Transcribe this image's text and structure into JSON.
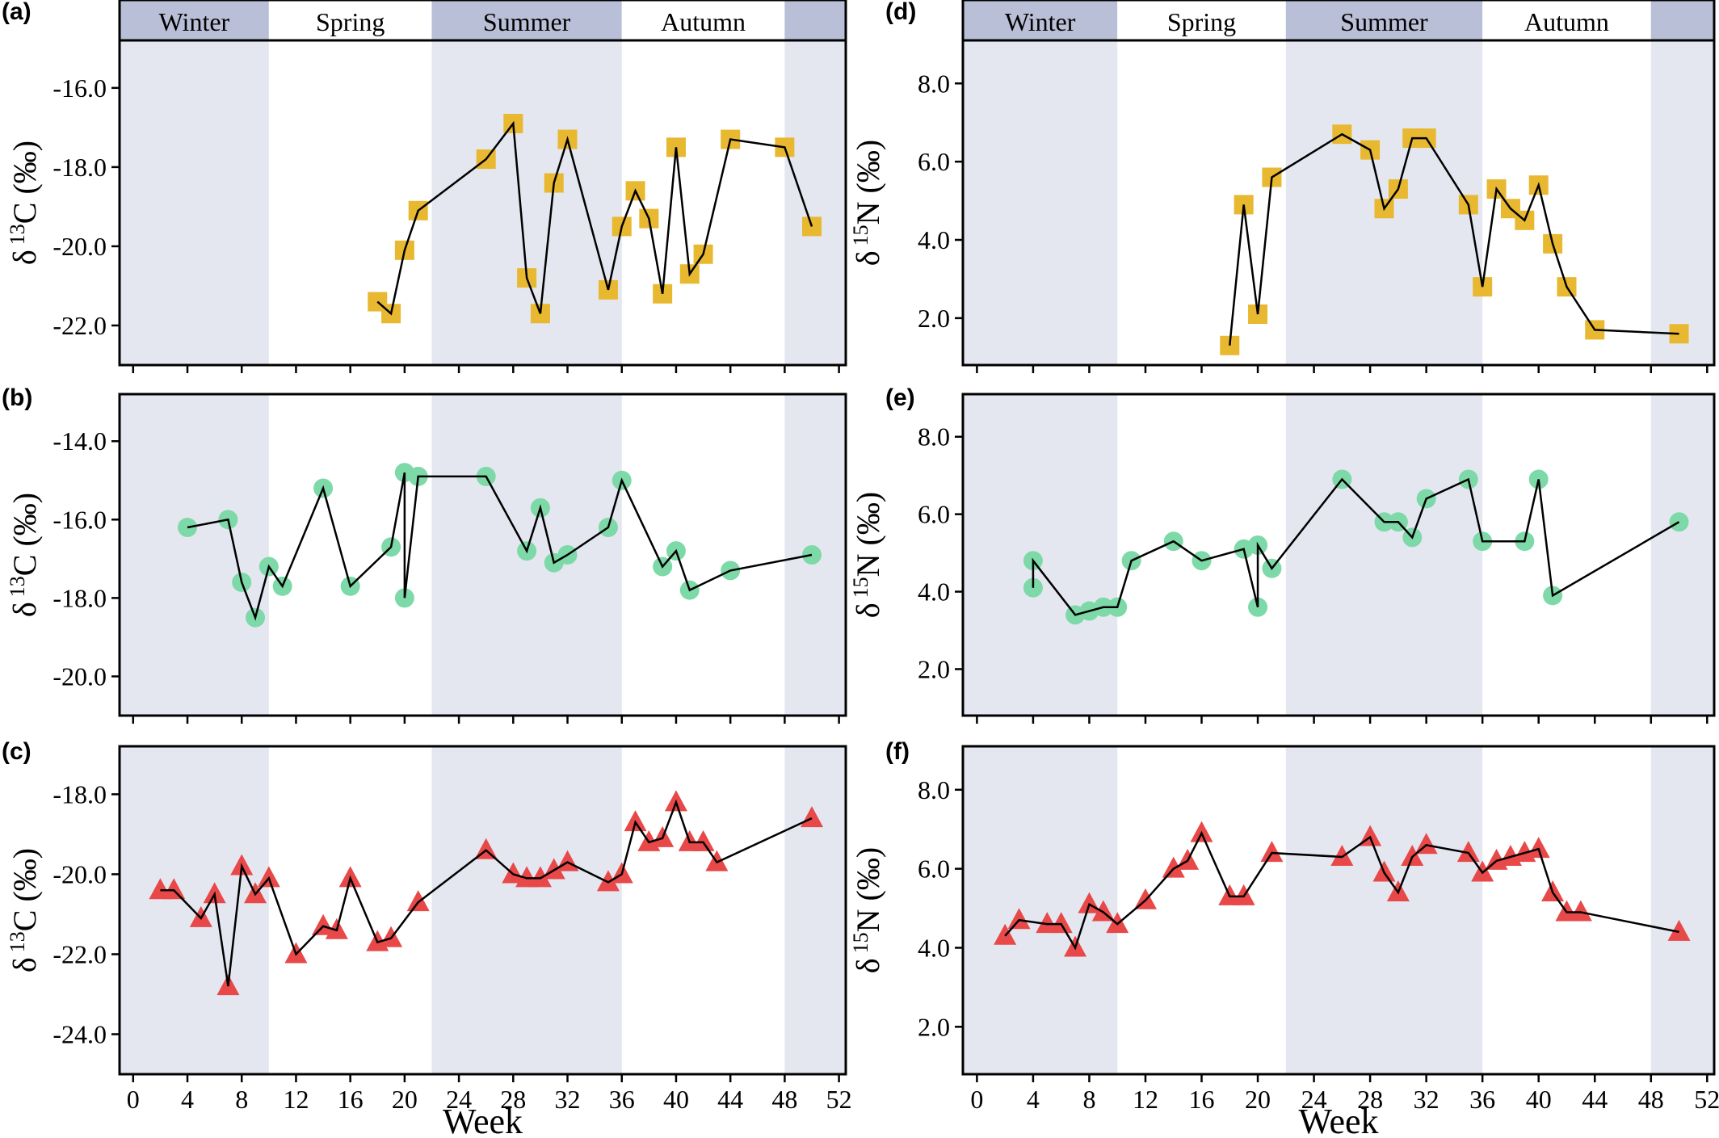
{
  "figure": {
    "xlabel": "Week",
    "x_ticks": [
      0,
      4,
      8,
      12,
      16,
      20,
      24,
      28,
      32,
      36,
      40,
      44,
      48,
      52
    ],
    "xlim": [
      -1,
      52.5
    ],
    "season_bands": [
      {
        "name": "Winter",
        "start": -1,
        "end": 10,
        "shaded": true
      },
      {
        "name": "Spring",
        "start": 10,
        "end": 22,
        "shaded": false
      },
      {
        "name": "Summer",
        "start": 22,
        "end": 36,
        "shaded": true
      },
      {
        "name": "Autumn",
        "start": 36,
        "end": 48,
        "shaded": false
      },
      {
        "name": "",
        "start": 48,
        "end": 52.5,
        "shaded": true
      }
    ],
    "colors": {
      "band_shade": "#e4e7f0",
      "header_shade": "#b8bfd6",
      "square": "#e8b830",
      "circle": "#7ed9a8",
      "triangle": "#e84848",
      "line": "#000000"
    }
  },
  "chart_data": [
    {
      "panel": "(a)",
      "type": "line",
      "marker": "square",
      "ylabel_main": "δ",
      "ylabel_sup": "13",
      "ylabel_rest": "C (‰)",
      "ylim": [
        -23.0,
        -14.8
      ],
      "y_ticks": [
        -16.0,
        -18.0,
        -20.0,
        -22.0
      ],
      "y_tick_labels": [
        "-16.0",
        "-18.0",
        "-20.0",
        "-22.0"
      ],
      "x": [
        18,
        19,
        20,
        21,
        26,
        28,
        29,
        30,
        31,
        32,
        35,
        36,
        37,
        38,
        39,
        40,
        41,
        42,
        44,
        48,
        50
      ],
      "y": [
        -21.4,
        -21.7,
        -20.1,
        -19.1,
        -17.8,
        -16.9,
        -20.8,
        -21.7,
        -18.4,
        -17.3,
        -21.1,
        -19.5,
        -18.6,
        -19.3,
        -21.2,
        -17.5,
        -20.7,
        -20.2,
        -17.3,
        -17.5,
        -19.5
      ]
    },
    {
      "panel": "(b)",
      "type": "line",
      "marker": "circle",
      "ylabel_main": "δ",
      "ylabel_sup": "13",
      "ylabel_rest": "C (‰)",
      "ylim": [
        -21.0,
        -12.8
      ],
      "y_ticks": [
        -14.0,
        -16.0,
        -18.0,
        -20.0
      ],
      "y_tick_labels": [
        "-14.0",
        "-16.0",
        "-18.0",
        "-20.0"
      ],
      "x": [
        4,
        7,
        8,
        9,
        10,
        11,
        14,
        16,
        19,
        20,
        20,
        21,
        26,
        29,
        30,
        31,
        32,
        35,
        36,
        39,
        40,
        41,
        44,
        50
      ],
      "y": [
        -16.2,
        -16.0,
        -17.6,
        -18.5,
        -17.2,
        -17.7,
        -15.2,
        -17.7,
        -16.7,
        -14.8,
        -18.0,
        -14.9,
        -14.9,
        -16.8,
        -15.7,
        -17.1,
        -16.9,
        -16.2,
        -15.0,
        -17.2,
        -16.8,
        -17.8,
        -17.3,
        -16.9
      ]
    },
    {
      "panel": "(c)",
      "type": "line",
      "marker": "triangle",
      "ylabel_main": "δ",
      "ylabel_sup": "13",
      "ylabel_rest": "C (‰)",
      "ylim": [
        -25.0,
        -16.8
      ],
      "y_ticks": [
        -18.0,
        -20.0,
        -22.0,
        -24.0
      ],
      "y_tick_labels": [
        "-18.0",
        "-20.0",
        "-22.0",
        "-24.0"
      ],
      "x": [
        2,
        3,
        5,
        6,
        7,
        8,
        9,
        10,
        12,
        14,
        15,
        16,
        18,
        19,
        21,
        26,
        28,
        29,
        30,
        31,
        32,
        35,
        36,
        37,
        38,
        39,
        40,
        41,
        42,
        43,
        50
      ],
      "y": [
        -20.4,
        -20.4,
        -21.1,
        -20.5,
        -22.8,
        -19.8,
        -20.5,
        -20.1,
        -22.0,
        -21.3,
        -21.4,
        -20.1,
        -21.7,
        -21.6,
        -20.7,
        -19.4,
        -20.0,
        -20.1,
        -20.1,
        -19.9,
        -19.7,
        -20.2,
        -20.0,
        -18.7,
        -19.2,
        -19.1,
        -18.2,
        -19.2,
        -19.2,
        -19.7,
        -18.6
      ]
    },
    {
      "panel": "(d)",
      "type": "line",
      "marker": "square",
      "ylabel_main": "δ",
      "ylabel_sup": "15",
      "ylabel_rest": "N (‰)",
      "ylim": [
        0.8,
        9.1
      ],
      "y_ticks": [
        2.0,
        4.0,
        6.0,
        8.0
      ],
      "y_tick_labels": [
        "2.0",
        "4.0",
        "6.0",
        "8.0"
      ],
      "x": [
        18,
        19,
        20,
        21,
        26,
        28,
        29,
        30,
        31,
        32,
        35,
        36,
        37,
        38,
        39,
        40,
        41,
        42,
        44,
        50
      ],
      "y": [
        1.3,
        4.9,
        2.1,
        5.6,
        6.7,
        6.3,
        4.8,
        5.3,
        6.6,
        6.6,
        4.9,
        2.8,
        5.3,
        4.8,
        4.5,
        5.4,
        3.9,
        2.8,
        1.7,
        1.6
      ]
    },
    {
      "panel": "(e)",
      "type": "line",
      "marker": "circle",
      "ylabel_main": "δ",
      "ylabel_sup": "15",
      "ylabel_rest": "N (‰)",
      "ylim": [
        0.8,
        9.1
      ],
      "y_ticks": [
        2.0,
        4.0,
        6.0,
        8.0
      ],
      "y_tick_labels": [
        "2.0",
        "4.0",
        "6.0",
        "8.0"
      ],
      "x": [
        4,
        4,
        7,
        8,
        9,
        10,
        11,
        14,
        16,
        19,
        20,
        20,
        21,
        26,
        29,
        30,
        31,
        32,
        35,
        36,
        39,
        40,
        41,
        50
      ],
      "y": [
        4.1,
        4.8,
        3.4,
        3.5,
        3.6,
        3.6,
        4.8,
        5.3,
        4.8,
        5.1,
        3.6,
        5.2,
        4.6,
        6.9,
        5.8,
        5.8,
        5.4,
        6.4,
        6.9,
        5.3,
        5.3,
        6.9,
        3.9,
        5.8
      ]
    },
    {
      "panel": "(f)",
      "type": "line",
      "marker": "triangle",
      "ylabel_main": "δ",
      "ylabel_sup": "15",
      "ylabel_rest": "N (‰)",
      "ylim": [
        0.8,
        9.1
      ],
      "y_ticks": [
        2.0,
        4.0,
        6.0,
        8.0
      ],
      "y_tick_labels": [
        "2.0",
        "4.0",
        "6.0",
        "8.0"
      ],
      "x": [
        2,
        3,
        5,
        6,
        7,
        8,
        9,
        10,
        12,
        14,
        15,
        16,
        18,
        19,
        21,
        26,
        28,
        29,
        30,
        31,
        32,
        35,
        36,
        37,
        38,
        39,
        40,
        41,
        42,
        43,
        50
      ],
      "y": [
        4.3,
        4.7,
        4.6,
        4.6,
        4.0,
        5.1,
        4.9,
        4.6,
        5.2,
        6.0,
        6.2,
        6.9,
        5.3,
        5.3,
        6.4,
        6.3,
        6.8,
        5.9,
        5.4,
        6.3,
        6.6,
        6.4,
        5.9,
        6.2,
        6.3,
        6.4,
        6.5,
        5.4,
        4.9,
        4.9,
        4.4
      ]
    }
  ]
}
